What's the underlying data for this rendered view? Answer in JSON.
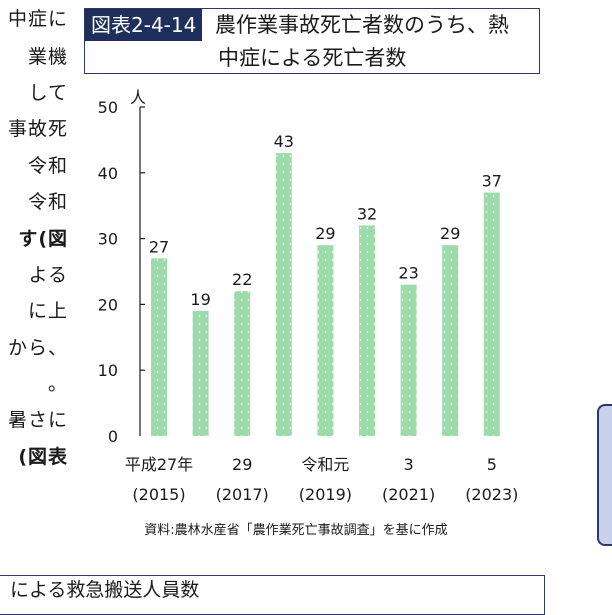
{
  "left_column": {
    "lines": [
      {
        "text": "中症に",
        "bold": false
      },
      {
        "text": "業機",
        "bold": false
      },
      {
        "text": "して",
        "bold": false
      },
      {
        "text": "事故死",
        "bold": false
      },
      {
        "text": "令和",
        "bold": false
      },
      {
        "text": "令和",
        "bold": false
      },
      {
        "text": "す(図",
        "bold": true
      },
      {
        "text": "よる",
        "bold": false
      },
      {
        "text": "に上",
        "bold": false
      },
      {
        "text": "から、",
        "bold": false
      },
      {
        "text": "。",
        "bold": false
      },
      {
        "text": "暑さに",
        "bold": false
      },
      {
        "text": "(図表",
        "bold": true
      }
    ]
  },
  "figure": {
    "number": "図表2-4-14",
    "title_line1": "農作業事故死亡者数のうち、熱",
    "title_line2": "中症による死亡者数"
  },
  "chart_data": {
    "type": "bar",
    "categories": [
      {
        "line1": "平成27年",
        "line2": "(2015)"
      },
      {
        "line1": "",
        "line2": ""
      },
      {
        "line1": "29",
        "line2": "(2017)"
      },
      {
        "line1": "",
        "line2": ""
      },
      {
        "line1": "令和元",
        "line2": "(2019)"
      },
      {
        "line1": "",
        "line2": ""
      },
      {
        "line1": "3",
        "line2": "(2021)"
      },
      {
        "line1": "",
        "line2": ""
      },
      {
        "line1": "5",
        "line2": "(2023)"
      }
    ],
    "values": [
      27,
      19,
      22,
      43,
      29,
      32,
      23,
      29,
      37
    ],
    "ylabel": "人",
    "ylim": [
      0,
      50
    ],
    "yticks": [
      0,
      10,
      20,
      30,
      40,
      50
    ],
    "grid": false,
    "bar_color": "#9ddbab",
    "bar_dot_color": "#ffffff"
  },
  "source": "資料:農林水産省「農作業死亡事故調査」を基に作成",
  "next_box_title": "による救急搬送人員数",
  "colors": {
    "accent_navy": "#1f2f5c",
    "side_tab_fill": "#c9d2ec"
  }
}
